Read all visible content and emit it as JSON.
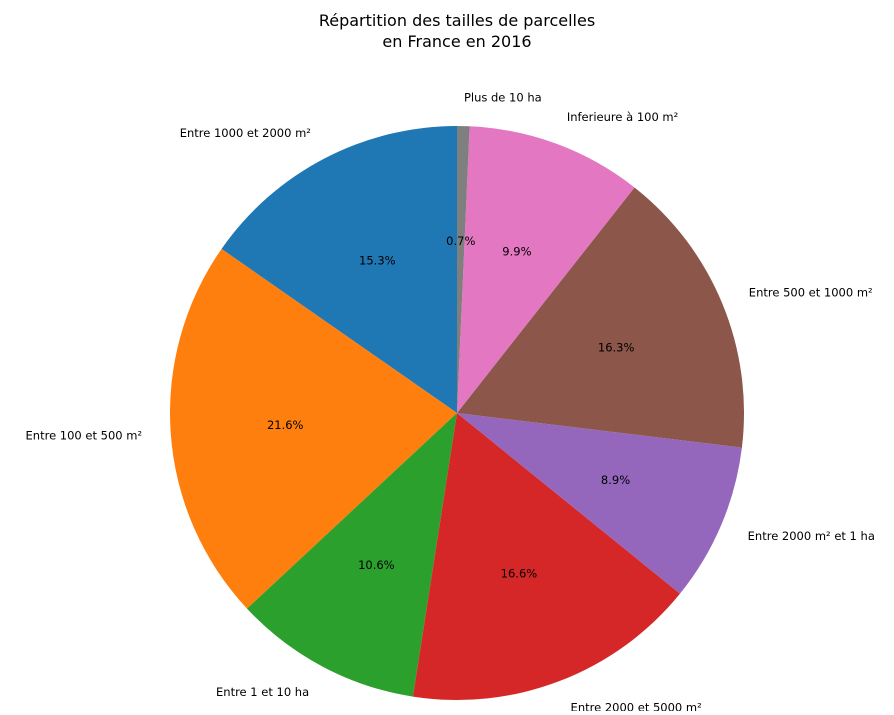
{
  "chart_data": {
    "type": "pie",
    "title_lines": [
      "Répartition des tailles de parcelles",
      "en France en 2016"
    ],
    "start_angle_deg": 90,
    "direction": "counterclockwise",
    "slices": [
      {
        "label": "Entre 1000 et 2000 m²",
        "value": 15.3,
        "pct_label": "15.3%",
        "color": "#1f77b4"
      },
      {
        "label": "Entre 100 et 500 m²",
        "value": 21.6,
        "pct_label": "21.6%",
        "color": "#ff7f0e"
      },
      {
        "label": "Entre 1 et 10 ha",
        "value": 10.6,
        "pct_label": "10.6%",
        "color": "#2ca02c"
      },
      {
        "label": "Entre 2000 et 5000 m²",
        "value": 16.6,
        "pct_label": "16.6%",
        "color": "#d62728"
      },
      {
        "label": "Entre 2000 m² et 1 ha",
        "value": 8.9,
        "pct_label": "8.9%",
        "color": "#9467bd"
      },
      {
        "label": "Entre 500 et 1000 m²",
        "value": 16.3,
        "pct_label": "16.3%",
        "color": "#8c564b"
      },
      {
        "label": "Inferieure à 100 m²",
        "value": 9.9,
        "pct_label": "9.9%",
        "color": "#e377c2"
      },
      {
        "label": "Plus de 10 ha",
        "value": 0.7,
        "pct_label": "0.7%",
        "color": "#7f7f7f"
      }
    ]
  }
}
